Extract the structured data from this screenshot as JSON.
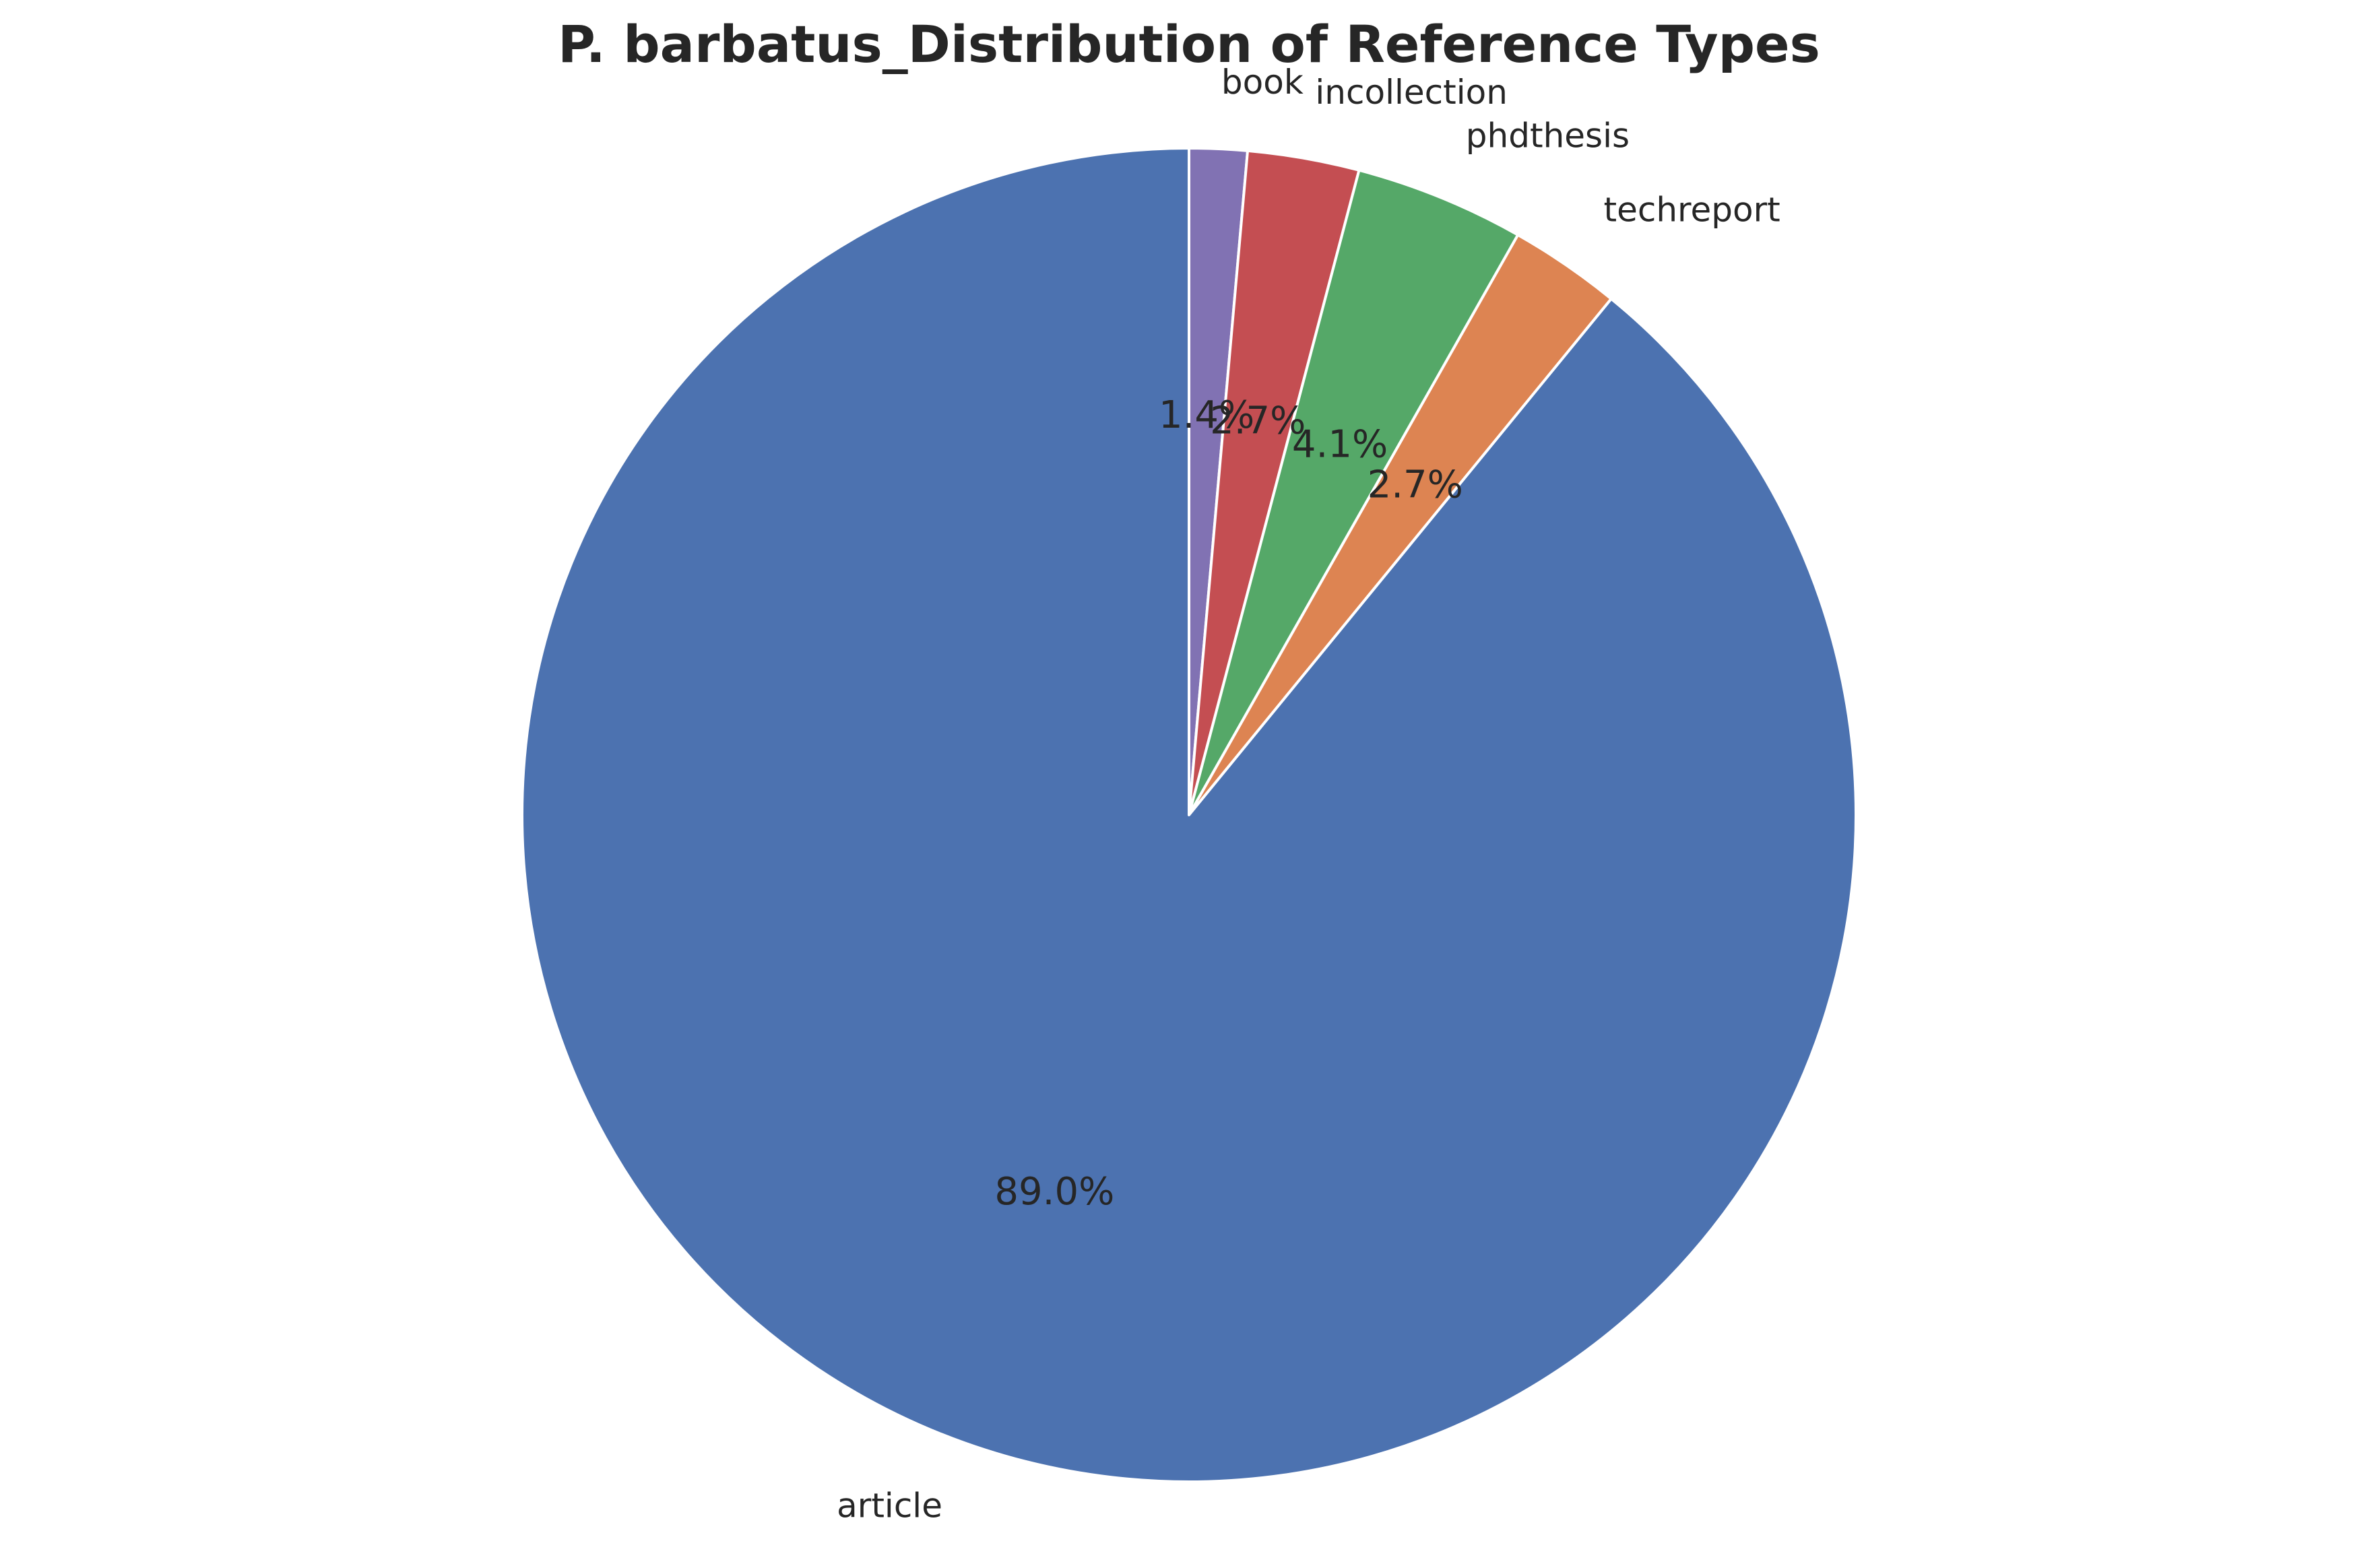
{
  "chart_data": {
    "type": "pie",
    "title": "P. barbatus_Distribution of Reference Types",
    "start_angle_deg": 90,
    "direction": "clockwise",
    "slices": [
      {
        "label": "book",
        "value": 1.4,
        "pct_label": "1.4%",
        "color": "#8172b3"
      },
      {
        "label": "incollection",
        "value": 2.7,
        "pct_label": "2.7%",
        "color": "#c44e52"
      },
      {
        "label": "phdthesis",
        "value": 4.1,
        "pct_label": "4.1%",
        "color": "#55a868"
      },
      {
        "label": "techreport",
        "value": 2.7,
        "pct_label": "2.7%",
        "color": "#dd8452"
      },
      {
        "label": "article",
        "value": 89.0,
        "pct_label": "89.0%",
        "color": "#4c72b0"
      }
    ],
    "slice_edge_color": "#ffffff"
  }
}
